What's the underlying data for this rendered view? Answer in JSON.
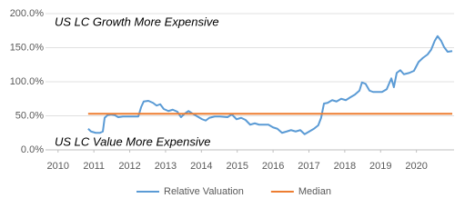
{
  "chart_data": {
    "type": "line",
    "annotations": [
      "US LC Growth More Expensive",
      "US LC Value More Expensive"
    ],
    "xlim": [
      2009.65,
      2021.05
    ],
    "xticks": [
      2010,
      2011,
      2012,
      2013,
      2014,
      2015,
      2016,
      2017,
      2018,
      2019,
      2020
    ],
    "ylim": [
      0,
      200
    ],
    "yticks": [
      {
        "value": 0,
        "label": "0.0%"
      },
      {
        "value": 50,
        "label": "50.0%"
      },
      {
        "value": 100,
        "label": "100.0%"
      },
      {
        "value": 150,
        "label": "150.0%"
      },
      {
        "value": 200,
        "label": "200.0%"
      }
    ],
    "grid": true,
    "legend": "bottom",
    "series": [
      {
        "name": "Relative Valuation",
        "color": "#5b9bd5",
        "x": [
          2010.84,
          2010.92,
          2011.05,
          2011.17,
          2011.25,
          2011.3,
          2011.38,
          2011.48,
          2011.58,
          2011.68,
          2011.81,
          2011.93,
          2012.11,
          2012.24,
          2012.32,
          2012.39,
          2012.52,
          2012.65,
          2012.75,
          2012.85,
          2012.95,
          2013.08,
          2013.2,
          2013.33,
          2013.43,
          2013.53,
          2013.64,
          2013.76,
          2013.89,
          2014.02,
          2014.12,
          2014.22,
          2014.37,
          2014.52,
          2014.73,
          2014.85,
          2014.98,
          2015.11,
          2015.23,
          2015.36,
          2015.49,
          2015.61,
          2015.74,
          2015.87,
          2016.0,
          2016.12,
          2016.25,
          2016.38,
          2016.5,
          2016.63,
          2016.76,
          2016.88,
          2017.01,
          2017.14,
          2017.26,
          2017.34,
          2017.42,
          2017.52,
          2017.65,
          2017.77,
          2017.9,
          2018.03,
          2018.15,
          2018.28,
          2018.41,
          2018.48,
          2018.58,
          2018.69,
          2018.79,
          2018.91,
          2019.04,
          2019.17,
          2019.3,
          2019.37,
          2019.45,
          2019.55,
          2019.65,
          2019.8,
          2019.93,
          2020.06,
          2020.18,
          2020.31,
          2020.41,
          2020.51,
          2020.59,
          2020.69,
          2020.77,
          2020.87,
          2021.0
        ],
        "values": [
          31,
          27,
          25,
          25,
          27,
          47,
          51,
          52,
          51,
          48,
          49,
          49,
          49,
          49,
          63,
          71,
          72,
          69,
          65,
          67,
          60,
          57,
          59,
          56,
          48,
          53,
          57,
          53,
          49,
          45,
          43,
          47,
          49,
          49,
          48,
          52,
          45,
          47,
          44,
          37,
          39,
          37,
          37,
          37,
          33,
          31,
          25,
          27,
          29,
          27,
          29,
          23,
          27,
          31,
          36,
          47,
          68,
          69,
          73,
          71,
          75,
          73,
          77,
          81,
          87,
          99,
          97,
          87,
          85,
          85,
          85,
          89,
          105,
          92,
          113,
          117,
          111,
          113,
          116,
          129,
          135,
          140,
          147,
          160,
          167,
          160,
          151,
          144,
          145
        ]
      },
      {
        "name": "Median",
        "color": "#ed7d31",
        "x": [
          2010.84,
          2021.0
        ],
        "values": [
          53,
          53
        ]
      }
    ]
  }
}
